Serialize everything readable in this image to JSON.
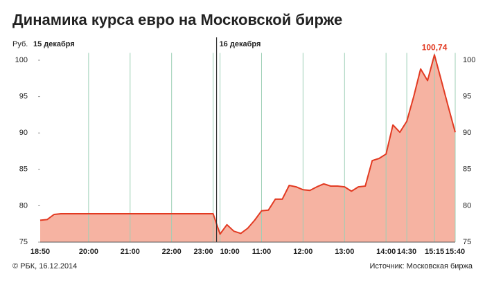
{
  "chart_data": {
    "type": "area-line",
    "title": "Динамика курса евро на Московской бирже",
    "ylabel": "Руб.",
    "day_labels": [
      "15 декабря",
      "16 декабря"
    ],
    "credit": "© РБК, 16.12.2014",
    "source": "Источник: Московская биржа",
    "categories": [
      "18:50",
      null,
      null,
      null,
      null,
      null,
      null,
      "20:00",
      null,
      null,
      null,
      null,
      null,
      "21:00",
      null,
      null,
      null,
      null,
      null,
      "22:00",
      null,
      null,
      null,
      null,
      null,
      "23:00",
      "10:00",
      null,
      null,
      null,
      null,
      null,
      "11:00",
      null,
      null,
      null,
      null,
      null,
      "12:00",
      null,
      null,
      null,
      null,
      null,
      "13:00",
      null,
      null,
      null,
      null,
      null,
      "14:00",
      null,
      null,
      "14:30",
      null,
      null,
      null,
      "15:15",
      null,
      null,
      "15:40"
    ],
    "values": [
      78.0,
      78.1,
      78.8,
      78.9,
      78.9,
      78.9,
      78.9,
      78.9,
      78.9,
      78.9,
      78.9,
      78.9,
      78.9,
      78.9,
      78.9,
      78.9,
      78.9,
      78.9,
      78.9,
      78.9,
      78.9,
      78.9,
      78.9,
      78.9,
      78.9,
      78.9,
      76.1,
      77.4,
      76.5,
      76.2,
      76.9,
      78.0,
      79.3,
      79.4,
      80.9,
      80.9,
      82.8,
      82.6,
      82.2,
      82.1,
      82.6,
      83.0,
      82.7,
      82.7,
      82.6,
      82.0,
      82.6,
      82.7,
      86.2,
      86.5,
      87.1,
      91.1,
      90.1,
      91.6,
      95.0,
      98.8,
      97.2,
      100.74,
      97.2,
      93.6,
      90.1
    ],
    "value_labels": [
      null,
      null,
      null,
      null,
      null,
      null,
      null,
      null,
      null,
      null,
      null,
      null,
      null,
      null,
      null,
      null,
      null,
      null,
      null,
      null,
      null,
      null,
      null,
      null,
      null,
      null,
      null,
      null,
      null,
      null,
      null,
      null,
      null,
      null,
      null,
      null,
      null,
      null,
      null,
      null,
      null,
      null,
      null,
      null,
      null,
      null,
      null,
      null,
      null,
      null,
      null,
      null,
      null,
      null,
      null,
      null,
      null,
      "100,74",
      null,
      null,
      null
    ],
    "day_break_after": 25,
    "color": "#e23a22",
    "fill": "#f6b3a2",
    "grid_color": "#9ccfb6",
    "ylim": [
      75,
      101
    ],
    "yticks": [
      75,
      80,
      85,
      90,
      95,
      100
    ],
    "grid": true
  }
}
